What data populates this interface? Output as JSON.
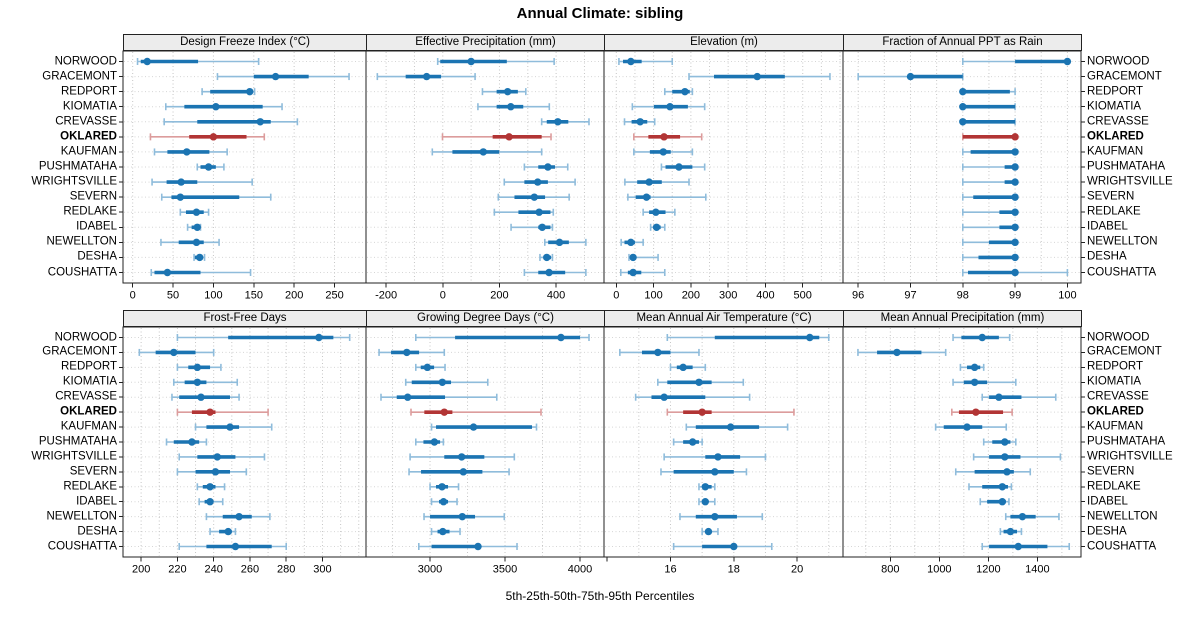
{
  "title": "Annual Climate: sibling",
  "caption": "5th-25th-50th-75th-95th Percentiles",
  "stations": [
    "NORWOOD",
    "GRACEMONT",
    "REDPORT",
    "KIOMATIA",
    "CREVASSE",
    "OKLARED",
    "KAUFMAN",
    "PUSHMATAHA",
    "WRIGHTSVILLE",
    "SEVERN",
    "REDLAKE",
    "IDABEL",
    "NEWELLTON",
    "DESHA",
    "COUSHATTA"
  ],
  "highlight_station": "OKLARED",
  "colors": {
    "blue": "#1b74b2",
    "blue_light": "#8fbcdb",
    "red": "#b23535",
    "red_light": "#dc9c9c",
    "strip_bg": "#ececec",
    "panel_border": "#222222",
    "grid": "#c6c6c6",
    "row_guide": "#d6d6d6",
    "text": "#000000"
  },
  "chart_data": {
    "type": "dot-whisker-trellis",
    "percentiles": [
      5,
      25,
      50,
      75,
      95
    ],
    "layout": {
      "rows": 2,
      "cols": 4,
      "grid": "dotted",
      "legend": "none",
      "station_labels": "left-and-right",
      "highlight_color": "red"
    },
    "panels": [
      {
        "title": "Design Freeze Index (°C)",
        "row": 0,
        "col": 0,
        "xlim": [
          -12,
          289
        ],
        "ticks": [
          0,
          50,
          100,
          150,
          200,
          250
        ],
        "grid": [
          0,
          50,
          100,
          150,
          200,
          250
        ],
        "values": [
          [
            6,
            10,
            18,
            81,
            156
          ],
          [
            105,
            150,
            177,
            218,
            268
          ],
          [
            86,
            96,
            145,
            149,
            151
          ],
          [
            41,
            64,
            103,
            161,
            185
          ],
          [
            39,
            80,
            158,
            171,
            204
          ],
          [
            22,
            70,
            100,
            141,
            163
          ],
          [
            27,
            43,
            67,
            95,
            117
          ],
          [
            80,
            84,
            94,
            103,
            113
          ],
          [
            24,
            42,
            60,
            80,
            148
          ],
          [
            36,
            48,
            59,
            132,
            171
          ],
          [
            59,
            66,
            79,
            88,
            94
          ],
          [
            68,
            73,
            80,
            81,
            84
          ],
          [
            35,
            57,
            79,
            88,
            107
          ],
          [
            76,
            77,
            83,
            87,
            89
          ],
          [
            23,
            27,
            43,
            84,
            146
          ]
        ]
      },
      {
        "title": "Effective Precipitation (mm)",
        "row": 0,
        "col": 1,
        "xlim": [
          -271,
          569
        ],
        "ticks": [
          -200,
          0,
          200,
          400
        ],
        "grid": [
          -200,
          -100,
          0,
          100,
          200,
          300,
          400,
          500
        ],
        "values": [
          [
            -18,
            -9,
            100,
            226,
            393
          ],
          [
            -231,
            -131,
            -57,
            -6,
            114
          ],
          [
            140,
            190,
            229,
            265,
            293
          ],
          [
            124,
            190,
            240,
            284,
            376
          ],
          [
            349,
            367,
            406,
            443,
            516
          ],
          [
            -1,
            176,
            234,
            349,
            382
          ],
          [
            -37,
            34,
            143,
            199,
            349
          ],
          [
            288,
            337,
            371,
            396,
            441
          ],
          [
            217,
            288,
            335,
            371,
            467
          ],
          [
            196,
            253,
            323,
            361,
            446
          ],
          [
            182,
            267,
            340,
            380,
            390
          ],
          [
            241,
            337,
            351,
            380,
            387
          ],
          [
            360,
            372,
            412,
            445,
            505
          ],
          [
            343,
            355,
            367,
            382,
            387
          ],
          [
            288,
            337,
            375,
            432,
            505
          ]
        ]
      },
      {
        "title": "Elevation (m)",
        "row": 0,
        "col": 2,
        "xlim": [
          -33,
          608
        ],
        "ticks": [
          0,
          100,
          200,
          300,
          400,
          500
        ],
        "grid": [
          0,
          50,
          100,
          150,
          200,
          250,
          300,
          350,
          400,
          450,
          500,
          550,
          600
        ],
        "values": [
          [
            7,
            18,
            39,
            68,
            150
          ],
          [
            195,
            262,
            378,
            452,
            573
          ],
          [
            130,
            150,
            184,
            197,
            204
          ],
          [
            43,
            101,
            144,
            192,
            237
          ],
          [
            22,
            41,
            64,
            83,
            103
          ],
          [
            47,
            86,
            128,
            171,
            229
          ],
          [
            47,
            90,
            126,
            146,
            204
          ],
          [
            121,
            132,
            168,
            204,
            237
          ],
          [
            23,
            56,
            88,
            122,
            195
          ],
          [
            31,
            52,
            81,
            92,
            240
          ],
          [
            72,
            88,
            106,
            132,
            157
          ],
          [
            92,
            99,
            108,
            119,
            130
          ],
          [
            13,
            22,
            39,
            50,
            72
          ],
          [
            34,
            38,
            45,
            52,
            112
          ],
          [
            12,
            31,
            45,
            67,
            130
          ]
        ]
      },
      {
        "title": "Fraction of Annual PPT as Rain",
        "row": 0,
        "col": 3,
        "xlim": [
          95.71,
          100.26
        ],
        "ticks": [
          96,
          97,
          98,
          99,
          100
        ],
        "grid": [
          96,
          96.5,
          97,
          97.5,
          98,
          98.5,
          99,
          99.5,
          100
        ],
        "values": [
          [
            98,
            99,
            100,
            100,
            100
          ],
          [
            96,
            96.95,
            97,
            98,
            98
          ],
          [
            98,
            98,
            98,
            98.9,
            99
          ],
          [
            98,
            98,
            98,
            99,
            99
          ],
          [
            98,
            98,
            98,
            99,
            99
          ],
          [
            98,
            98,
            99,
            99,
            99
          ],
          [
            98,
            98.15,
            99,
            99,
            99
          ],
          [
            98,
            98.8,
            99,
            99,
            99
          ],
          [
            98,
            98.8,
            99,
            99,
            99
          ],
          [
            98,
            98.2,
            99,
            99,
            99
          ],
          [
            98,
            98.7,
            99,
            99,
            99
          ],
          [
            98,
            98.7,
            99,
            99,
            99
          ],
          [
            98,
            98.5,
            99,
            99,
            99
          ],
          [
            98,
            98.3,
            99,
            99,
            99
          ],
          [
            98,
            98.1,
            99,
            99,
            100
          ]
        ]
      },
      {
        "title": "Frost-Free Days",
        "row": 1,
        "col": 0,
        "xlim": [
          190,
          324
        ],
        "ticks": [
          200,
          220,
          240,
          260,
          280,
          300
        ],
        "grid": [
          200,
          210,
          220,
          230,
          240,
          250,
          260,
          270,
          280,
          290,
          300,
          310,
          320
        ],
        "values": [
          [
            220,
            248,
            298,
            306,
            315
          ],
          [
            199,
            208,
            218,
            230,
            240
          ],
          [
            220,
            226,
            231,
            238,
            244
          ],
          [
            218,
            224,
            231,
            236,
            253
          ],
          [
            217,
            221,
            233,
            249,
            254
          ],
          [
            220,
            228,
            238,
            241,
            270
          ],
          [
            230,
            236,
            249,
            254,
            272
          ],
          [
            214,
            218,
            228,
            232,
            236
          ],
          [
            221,
            231,
            242,
            252,
            268
          ],
          [
            220,
            230,
            241,
            249,
            258
          ],
          [
            231,
            234,
            238,
            241,
            246
          ],
          [
            232,
            235,
            238,
            239,
            245
          ],
          [
            236,
            245,
            254,
            261,
            271
          ],
          [
            238,
            243,
            248,
            250,
            252
          ],
          [
            221,
            236,
            252,
            272,
            280
          ]
        ]
      },
      {
        "title": "Growing Degree Days (°C)",
        "row": 1,
        "col": 1,
        "xlim": [
          2573,
          4160
        ],
        "ticks": [
          3000,
          3500,
          4000
        ],
        "grid": [
          2750,
          3000,
          3250,
          3500,
          3750,
          4000
        ],
        "values": [
          [
            2905,
            3167,
            3873,
            4000,
            4060
          ],
          [
            2660,
            2740,
            2845,
            2927,
            3095
          ],
          [
            2905,
            2938,
            2982,
            3027,
            3100
          ],
          [
            2838,
            2878,
            3082,
            3140,
            3385
          ],
          [
            2673,
            2778,
            2851,
            3100,
            3445
          ],
          [
            2873,
            2962,
            3095,
            3149,
            3740
          ],
          [
            3010,
            3040,
            3290,
            3680,
            3710
          ],
          [
            2905,
            2956,
            3029,
            3067,
            3089
          ],
          [
            2867,
            3095,
            3211,
            3362,
            3562
          ],
          [
            2860,
            2940,
            3222,
            3349,
            3527
          ],
          [
            3000,
            3040,
            3080,
            3120,
            3190
          ],
          [
            3010,
            3060,
            3090,
            3120,
            3180
          ],
          [
            2960,
            3000,
            3215,
            3300,
            3495
          ],
          [
            3010,
            3050,
            3085,
            3130,
            3200
          ],
          [
            2925,
            3010,
            3320,
            3340,
            3580
          ]
        ]
      },
      {
        "title": "Mean Annual Air Temperature (°C)",
        "row": 1,
        "col": 2,
        "xlim": [
          13.9,
          21.45
        ],
        "ticks": [
          16,
          18,
          20
        ],
        "unlabeled_ticks": [
          14
        ],
        "grid": [
          15,
          16,
          17,
          18,
          19,
          20,
          21
        ],
        "values": [
          [
            15.9,
            17.4,
            20.4,
            20.7,
            21.0
          ],
          [
            14.4,
            15.1,
            15.6,
            16.0,
            16.9
          ],
          [
            16.0,
            16.2,
            16.4,
            16.7,
            17.1
          ],
          [
            15.6,
            15.9,
            16.9,
            17.3,
            18.3
          ],
          [
            14.9,
            15.4,
            15.8,
            17.1,
            18.5
          ],
          [
            15.9,
            16.4,
            17.0,
            17.3,
            19.9
          ],
          [
            16.5,
            16.8,
            17.9,
            18.8,
            19.7
          ],
          [
            16.1,
            16.4,
            16.7,
            16.9,
            17.0
          ],
          [
            15.8,
            17.1,
            17.5,
            18.2,
            19.0
          ],
          [
            15.7,
            16.1,
            17.4,
            18.0,
            18.4
          ],
          [
            16.9,
            17.0,
            17.1,
            17.3,
            17.4
          ],
          [
            16.9,
            17.0,
            17.1,
            17.2,
            17.4
          ],
          [
            16.3,
            16.8,
            17.4,
            18.1,
            18.9
          ],
          [
            17.0,
            17.1,
            17.2,
            17.3,
            17.5
          ],
          [
            16.1,
            17.0,
            18.0,
            18.1,
            19.2
          ]
        ]
      },
      {
        "title": "Mean Annual Precipitation (mm)",
        "row": 1,
        "col": 3,
        "xlim": [
          607,
          1578
        ],
        "ticks": [
          800,
          1000,
          1200,
          1400
        ],
        "grid": [
          700,
          800,
          900,
          1000,
          1100,
          1200,
          1300,
          1400,
          1500
        ],
        "values": [
          [
            1056,
            1090,
            1175,
            1243,
            1287
          ],
          [
            668,
            746,
            827,
            927,
            1026
          ],
          [
            1086,
            1113,
            1144,
            1167,
            1181
          ],
          [
            1056,
            1100,
            1144,
            1195,
            1312
          ],
          [
            1175,
            1203,
            1243,
            1335,
            1475
          ],
          [
            1051,
            1080,
            1149,
            1260,
            1297
          ],
          [
            985,
            1018,
            1113,
            1175,
            1273
          ],
          [
            1181,
            1216,
            1267,
            1290,
            1312
          ],
          [
            1140,
            1203,
            1267,
            1331,
            1494
          ],
          [
            1067,
            1144,
            1276,
            1304,
            1371
          ],
          [
            1121,
            1175,
            1257,
            1280,
            1294
          ],
          [
            1167,
            1195,
            1257,
            1271,
            1284
          ],
          [
            1271,
            1290,
            1339,
            1393,
            1488
          ],
          [
            1249,
            1262,
            1290,
            1317,
            1335
          ],
          [
            1175,
            1203,
            1322,
            1441,
            1530
          ]
        ]
      }
    ]
  }
}
